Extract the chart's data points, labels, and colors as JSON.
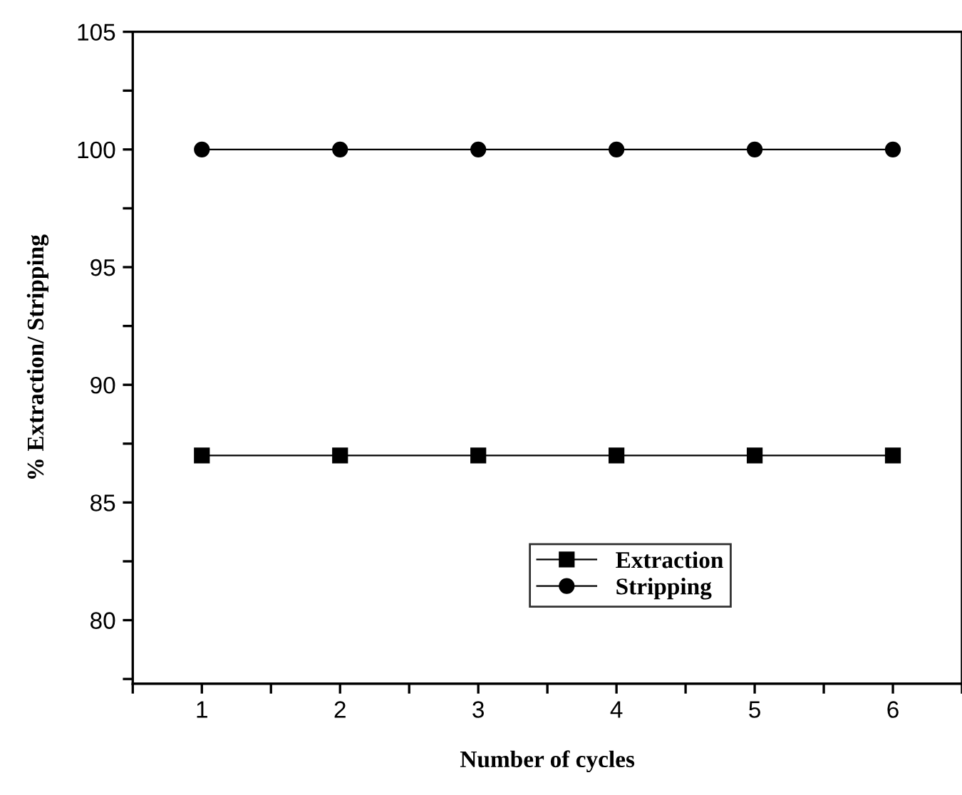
{
  "chart_data": {
    "type": "line",
    "xlabel": "Number of cycles",
    "ylabel": "% Extraction/ Stripping",
    "x": [
      1,
      2,
      3,
      4,
      5,
      6
    ],
    "series": [
      {
        "name": "Extraction",
        "color": "#000000",
        "marker": "square",
        "values": [
          87,
          87,
          87,
          87,
          87,
          87
        ]
      },
      {
        "name": "Stripping",
        "color": "#000000",
        "marker": "circle",
        "values": [
          100,
          100,
          100,
          100,
          100,
          100
        ]
      }
    ],
    "xlim": [
      0.5,
      6.5
    ],
    "ylim": [
      77.3,
      105
    ],
    "xticks": [
      {
        "value": 0.5,
        "label": null
      },
      1,
      {
        "value": 1.5,
        "label": null
      },
      2,
      {
        "value": 2.5,
        "label": null
      },
      3,
      {
        "value": 3.5,
        "label": null
      },
      4,
      {
        "value": 4.5,
        "label": null
      },
      5,
      {
        "value": 5.5,
        "label": null
      },
      6,
      {
        "value": 6.5,
        "label": null
      }
    ],
    "yticks": [
      {
        "value": 77.5,
        "label": null
      },
      80,
      {
        "value": 82.5,
        "label": null
      },
      85,
      {
        "value": 87.5,
        "label": null
      },
      90,
      {
        "value": 92.5,
        "label": null
      },
      95,
      {
        "value": 97.5,
        "label": null
      },
      100,
      {
        "value": 102.5,
        "label": null
      },
      105
    ],
    "grid": false,
    "legend": "bottom"
  }
}
